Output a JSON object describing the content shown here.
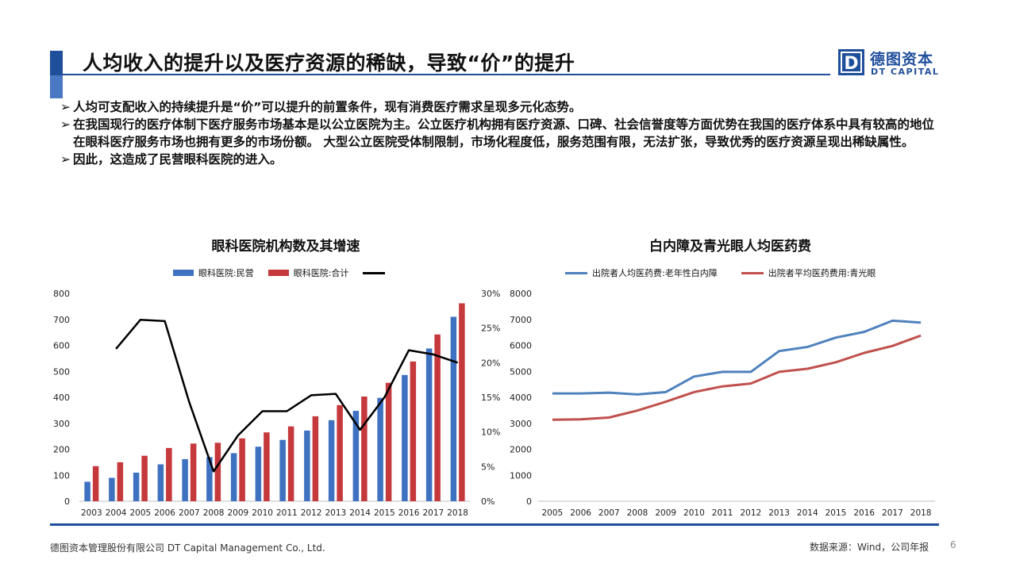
{
  "header": {
    "title": "人均收入的提升以及医疗资源的稀缺，导致“价”的提升",
    "logo_mark": "D",
    "logo_cn": "德图资本",
    "logo_en": "DT CAPITAL"
  },
  "bullets": [
    {
      "marker": "➢",
      "text": "人均可支配收入的持续提升是“价”可以提升的前置条件，现有消费医疗需求呈现多元化态势。"
    },
    {
      "marker": "➢",
      "text": "在我国现行的医疗体制下医疗服务市场基本是以公立医院为主。公立医疗机构拥有医疗资源、口碑、社会信誉度等方面优势在我国的医疗体系中具有较高的地位在眼科医疗服务市场也拥有更多的市场份额。  大型公立医院受体制限制，市场化程度低，服务范围有限，无法扩张，导致优秀的医疗资源呈现出稀缺属性。"
    },
    {
      "marker": "➢",
      "text": "因此，这造成了民营眼科医院的进入。"
    }
  ],
  "chart_data": [
    {
      "type": "bar",
      "title": "眼科医院机构数及其增速",
      "categories": [
        "2003",
        "2004",
        "2005",
        "2006",
        "2007",
        "2008",
        "2009",
        "2010",
        "2011",
        "2012",
        "2013",
        "2014",
        "2015",
        "2016",
        "2017",
        "2018"
      ],
      "series": [
        {
          "name": "眼科医院:民营",
          "kind": "bar",
          "axis": "left",
          "color": "#3f71c1",
          "values": [
            75,
            90,
            110,
            142,
            162,
            170,
            185,
            210,
            236,
            272,
            312,
            348,
            398,
            486,
            588,
            710
          ]
        },
        {
          "name": "眼科医院:合计",
          "kind": "bar",
          "axis": "left",
          "color": "#c5383c",
          "values": [
            135,
            150,
            175,
            205,
            222,
            225,
            242,
            265,
            288,
            327,
            370,
            403,
            456,
            538,
            642,
            762
          ]
        },
        {
          "name": "",
          "kind": "line",
          "axis": "right",
          "color": "#000000",
          "values": [
            null,
            22.0,
            26.2,
            26.0,
            14.3,
            4.3,
            9.5,
            13.0,
            13.0,
            15.3,
            15.5,
            10.3,
            15.0,
            21.8,
            21.2,
            20.0
          ]
        }
      ],
      "ylim_left": [
        0,
        800
      ],
      "yticks_left": [
        0,
        100,
        200,
        300,
        400,
        500,
        600,
        700,
        800
      ],
      "ylim_right": [
        0,
        30
      ],
      "yticks_right_labels": [
        "0%",
        "5%",
        "10%",
        "15%",
        "20%",
        "25%",
        "30%"
      ],
      "grid": false,
      "legend": "top-center"
    },
    {
      "type": "line",
      "title": "白内障及青光眼人均医药费",
      "x": [
        "2005",
        "2006",
        "2007",
        "2008",
        "2009",
        "2010",
        "2011",
        "2012",
        "2013",
        "2014",
        "2015",
        "2016",
        "2017",
        "2018"
      ],
      "series": [
        {
          "name": "出院者人均医药费:老年性白内障",
          "color": "#4f81bd",
          "values": [
            4150,
            4150,
            4180,
            4110,
            4200,
            4800,
            4980,
            4980,
            5780,
            5940,
            6300,
            6520,
            6950,
            6880
          ]
        },
        {
          "name": "出院者平均医药费用:青光眼",
          "color": "#c0504d",
          "values": [
            3140,
            3150,
            3220,
            3490,
            3830,
            4200,
            4420,
            4530,
            4980,
            5100,
            5350,
            5710,
            5980,
            6380
          ]
        }
      ],
      "ylim": [
        0,
        8000
      ],
      "yticks": [
        0,
        1000,
        2000,
        3000,
        4000,
        5000,
        6000,
        7000,
        8000
      ],
      "grid": false,
      "legend": "top-center"
    }
  ],
  "footer": {
    "company": "德图资本管理股份有限公司  DT Capital Management  Co., Ltd.",
    "source": "数据来源：Wind，公司年报",
    "page": "6"
  }
}
